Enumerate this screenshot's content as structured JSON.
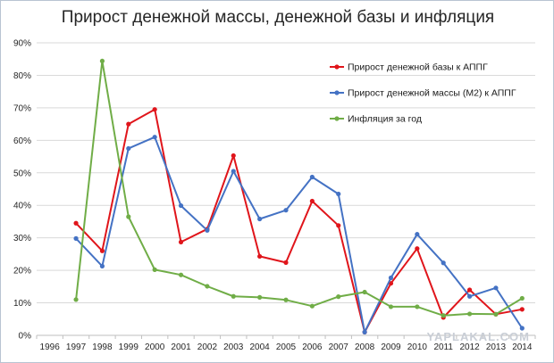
{
  "chart_data": {
    "type": "line",
    "title": "Прирост денежной массы, денежной базы и инфляция",
    "xlabel": "",
    "ylabel": "",
    "categories": [
      "1996",
      "1997",
      "1998",
      "1999",
      "2000",
      "2001",
      "2002",
      "2003",
      "2004",
      "2005",
      "2006",
      "2007",
      "2008",
      "2009",
      "2010",
      "2011",
      "2012",
      "2013",
      "2014"
    ],
    "y_ticks": [
      "0%",
      "10%",
      "20%",
      "30%",
      "40%",
      "50%",
      "60%",
      "70%",
      "80%",
      "90%"
    ],
    "ylim": [
      0,
      90
    ],
    "grid": true,
    "legend_position": "top-right",
    "series": [
      {
        "name": "Прирост денежной базы к АППГ",
        "color": "#e0151b",
        "values": [
          null,
          34.5,
          26.0,
          65.0,
          69.5,
          28.7,
          32.7,
          55.3,
          24.3,
          22.4,
          41.3,
          33.8,
          1.0,
          16.0,
          26.7,
          5.5,
          14.0,
          6.5,
          8.0
        ]
      },
      {
        "name": "Прирост денежной массы (М2) к АППГ",
        "color": "#4472c4",
        "values": [
          null,
          29.8,
          21.3,
          57.5,
          61.0,
          39.9,
          32.3,
          50.5,
          35.8,
          38.5,
          48.7,
          43.5,
          1.0,
          17.7,
          31.1,
          22.3,
          12.0,
          14.6,
          2.2
        ]
      },
      {
        "name": "Инфляция за год",
        "color": "#70ad47",
        "values": [
          null,
          11.0,
          84.4,
          36.5,
          20.2,
          18.6,
          15.1,
          12.0,
          11.7,
          10.9,
          9.0,
          11.9,
          13.3,
          8.8,
          8.8,
          6.1,
          6.6,
          6.5,
          11.4
        ]
      }
    ]
  },
  "watermark": "YAPLAKAL.COM"
}
